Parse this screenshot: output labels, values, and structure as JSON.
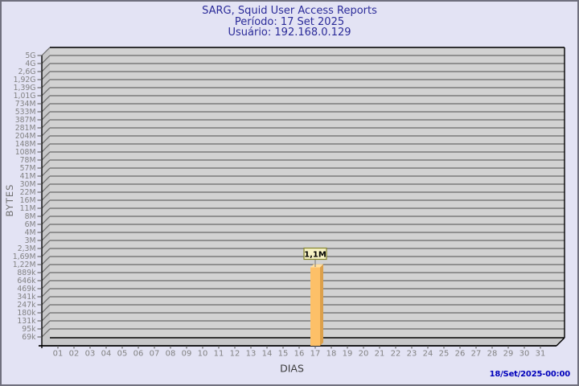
{
  "header": {
    "title": "SARG, Squid User Access Reports",
    "period": "Período: 17 Set 2025",
    "user": "Usuário: 192.168.0.129"
  },
  "footer": {
    "generated_at": "18/Set/2025-00:00"
  },
  "chart_data": {
    "type": "bar",
    "title": "SARG, Squid User Access Reports",
    "subtitle_period": "Período: 17 Set 2025",
    "subtitle_user": "Usuário: 192.168.0.129",
    "xlabel": "DIAS",
    "ylabel": "BYTES",
    "y_scale": "log",
    "grid": true,
    "legend": null,
    "categories": [
      "01",
      "02",
      "03",
      "04",
      "05",
      "06",
      "07",
      "08",
      "09",
      "10",
      "11",
      "12",
      "13",
      "14",
      "15",
      "16",
      "17",
      "18",
      "19",
      "20",
      "21",
      "22",
      "23",
      "24",
      "25",
      "26",
      "27",
      "28",
      "29",
      "30",
      "31"
    ],
    "y_tick_labels_top_to_bottom": [
      "5G",
      "4G",
      "2,6G",
      "1,92G",
      "1,39G",
      "1,01G",
      "734M",
      "533M",
      "387M",
      "281M",
      "204M",
      "148M",
      "108M",
      "78M",
      "57M",
      "41M",
      "30M",
      "22M",
      "16M",
      "11M",
      "8M",
      "6M",
      "4M",
      "3M",
      "2,3M",
      "1,69M",
      "1,22M",
      "889k",
      "646k",
      "469k",
      "341k",
      "247k",
      "180k",
      "131k",
      "95k",
      "69k"
    ],
    "values": [
      0,
      0,
      0,
      0,
      0,
      0,
      0,
      0,
      0,
      0,
      0,
      0,
      0,
      0,
      0,
      0,
      1100000,
      0,
      0,
      0,
      0,
      0,
      0,
      0,
      0,
      0,
      0,
      0,
      0,
      0,
      0
    ],
    "bars": [
      {
        "category": "17",
        "value": 1100000,
        "label": "1,1M"
      }
    ]
  },
  "colors": {
    "page_bg": "#E3E3F4",
    "page_border": "#70707E",
    "title_text": "#2B2B99",
    "wall_fill": "#D2D2D2",
    "side_fill": "#C7C7C9",
    "grid_line": "#6A6A6A",
    "axis_line": "#000000",
    "tick_text": "#828282",
    "x_axis_title": "#3C3C3C",
    "y_axis_title": "#707070",
    "bar_front": "#FDC068",
    "bar_side": "#DCA04B",
    "bar_top": "#FFDFA0",
    "value_box_bg": "#F6F2C4",
    "value_box_border": "#85852F",
    "value_text": "#000000",
    "timestamp_text": "#0000BB"
  }
}
